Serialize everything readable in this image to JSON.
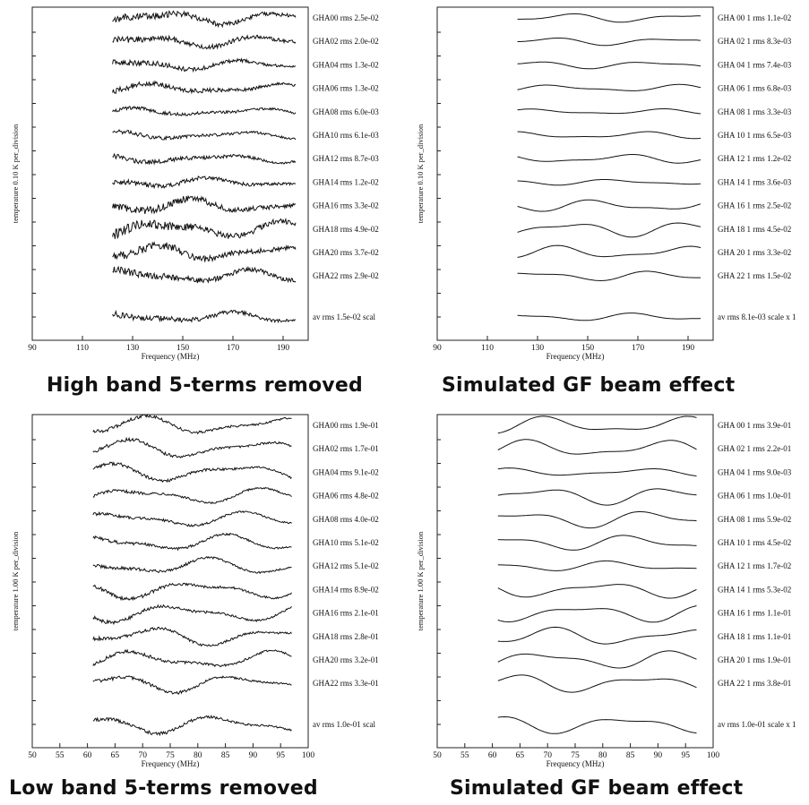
{
  "panels": [
    {
      "title": "High band 5-terms removed",
      "chart_data": {
        "type": "line",
        "xlabel": "Frequency (MHz)",
        "ylabel": "temperature  0.10 K  per_division",
        "xlim": [
          90,
          200
        ],
        "xticks": [
          90,
          110,
          130,
          150,
          170,
          190
        ],
        "x_range": [
          122,
          195
        ],
        "noise": 0.35,
        "series": [
          {
            "name": "GHA00 rms 2.5e-02",
            "label": "GHA00 rms 2.5e-02",
            "rms": 0.025
          },
          {
            "name": "GHA02 rms 2.0e-02",
            "label": "GHA02 rms 2.0e-02",
            "rms": 0.02
          },
          {
            "name": "GHA04 rms 1.3e-02",
            "label": "GHA04 rms 1.3e-02",
            "rms": 0.013
          },
          {
            "name": "GHA06 rms 1.3e-02",
            "label": "GHA06 rms 1.3e-02",
            "rms": 0.013
          },
          {
            "name": "GHA08 rms 6.0e-03",
            "label": "GHA08 rms 6.0e-03",
            "rms": 0.006
          },
          {
            "name": "GHA10 rms 6.1e-03",
            "label": "GHA10 rms 6.1e-03",
            "rms": 0.0061
          },
          {
            "name": "GHA12 rms 8.7e-03",
            "label": "GHA12 rms 8.7e-03",
            "rms": 0.0087
          },
          {
            "name": "GHA14 rms 1.2e-02",
            "label": "GHA14 rms 1.2e-02",
            "rms": 0.012
          },
          {
            "name": "GHA16 rms 3.3e-02",
            "label": "GHA16 rms 3.3e-02",
            "rms": 0.033
          },
          {
            "name": "GHA18 rms 4.9e-02",
            "label": "GHA18 rms 4.9e-02",
            "rms": 0.049
          },
          {
            "name": "GHA20 rms 3.7e-02",
            "label": "GHA20 rms 3.7e-02",
            "rms": 0.037
          },
          {
            "name": "GHA22 rms 2.9e-02",
            "label": "GHA22 rms 2.9e-02",
            "rms": 0.029
          },
          {
            "name": "av  rms 1.5e-02 scal",
            "label": "av  rms 1.5e-02 scal",
            "rms": 0.015,
            "average": true
          }
        ]
      }
    },
    {
      "title": "Simulated GF beam effect",
      "chart_data": {
        "type": "line",
        "xlabel": "Frequency (MHz)",
        "ylabel": "temperature  0.10 K  per_division",
        "xlim": [
          90,
          200
        ],
        "xticks": [
          90,
          110,
          130,
          150,
          170,
          190
        ],
        "x_range": [
          122,
          195
        ],
        "noise": 0,
        "series": [
          {
            "name": "GHA 00 1 rms 1.1e-02",
            "label": "GHA 00 1 rms 1.1e-02",
            "rms": 0.011
          },
          {
            "name": "GHA 02 1 rms 8.3e-03",
            "label": "GHA 02 1 rms 8.3e-03",
            "rms": 0.0083
          },
          {
            "name": "GHA 04 1 rms 7.4e-03",
            "label": "GHA 04 1 rms 7.4e-03",
            "rms": 0.0074
          },
          {
            "name": "GHA 06 1 rms 6.8e-03",
            "label": "GHA 06 1 rms 6.8e-03",
            "rms": 0.0068
          },
          {
            "name": "GHA 08 1 rms 3.3e-03",
            "label": "GHA 08 1 rms 3.3e-03",
            "rms": 0.0033
          },
          {
            "name": "GHA 10 1 rms 6.5e-03",
            "label": "GHA 10 1 rms 6.5e-03",
            "rms": 0.0065
          },
          {
            "name": "GHA 12 1 rms 1.2e-02",
            "label": "GHA 12 1 rms 1.2e-02",
            "rms": 0.012
          },
          {
            "name": "GHA 14 1 rms 3.6e-03",
            "label": "GHA 14 1 rms 3.6e-03",
            "rms": 0.0036
          },
          {
            "name": "GHA 16 1 rms 2.5e-02",
            "label": "GHA 16 1 rms 2.5e-02",
            "rms": 0.025
          },
          {
            "name": "GHA 18 1 rms 4.5e-02",
            "label": "GHA 18 1 rms 4.5e-02",
            "rms": 0.045
          },
          {
            "name": "GHA 20 1 rms 3.3e-02",
            "label": "GHA 20 1 rms 3.3e-02",
            "rms": 0.033
          },
          {
            "name": "GHA 22 1 rms 1.5e-02",
            "label": "GHA 22 1 rms 1.5e-02",
            "rms": 0.015
          },
          {
            "name": "av  rms 8.1e-03 scale x 1",
            "label": "av  rms 8.1e-03 scale x 1",
            "rms": 0.0081,
            "average": true
          }
        ]
      }
    },
    {
      "title": "Low band 5-terms removed",
      "chart_data": {
        "type": "line",
        "xlabel": "Frequency (MHz)",
        "ylabel": "temperature  1.00 K  per_division",
        "xlim": [
          50,
          100
        ],
        "xticks": [
          50,
          55,
          60,
          65,
          70,
          75,
          80,
          85,
          90,
          95,
          100
        ],
        "x_range": [
          61,
          97
        ],
        "noise": 0.12,
        "series": [
          {
            "name": "GHA00 rms 1.9e-01",
            "label": "GHA00 rms 1.9e-01",
            "rms": 0.19
          },
          {
            "name": "GHA02 rms 1.7e-01",
            "label": "GHA02 rms 1.7e-01",
            "rms": 0.17
          },
          {
            "name": "GHA04 rms 9.1e-02",
            "label": "GHA04 rms 9.1e-02",
            "rms": 0.091
          },
          {
            "name": "GHA06 rms 4.8e-02",
            "label": "GHA06 rms 4.8e-02",
            "rms": 0.048
          },
          {
            "name": "GHA08 rms 4.0e-02",
            "label": "GHA08 rms 4.0e-02",
            "rms": 0.04
          },
          {
            "name": "GHA10 rms 5.1e-02",
            "label": "GHA10 rms 5.1e-02",
            "rms": 0.051
          },
          {
            "name": "GHA12 rms 5.1e-02",
            "label": "GHA12 rms 5.1e-02",
            "rms": 0.051
          },
          {
            "name": "GHA14 rms 8.9e-02",
            "label": "GHA14 rms 8.9e-02",
            "rms": 0.089
          },
          {
            "name": "GHA16 rms 2.1e-01",
            "label": "GHA16 rms 2.1e-01",
            "rms": 0.21
          },
          {
            "name": "GHA18 rms 2.8e-01",
            "label": "GHA18 rms 2.8e-01",
            "rms": 0.28
          },
          {
            "name": "GHA20 rms 3.2e-01",
            "label": "GHA20 rms 3.2e-01",
            "rms": 0.32
          },
          {
            "name": "GHA22 rms 3.3e-01",
            "label": "GHA22 rms 3.3e-01",
            "rms": 0.33
          },
          {
            "name": "av  rms 1.0e-01 scal",
            "label": "av  rms 1.0e-01 scal",
            "rms": 0.1,
            "average": true
          }
        ]
      }
    },
    {
      "title": "Simulated GF beam effect",
      "chart_data": {
        "type": "line",
        "xlabel": "Frequency (MHz)",
        "ylabel": "temperature  1.00 K  per_division",
        "xlim": [
          50,
          100
        ],
        "xticks": [
          50,
          55,
          60,
          65,
          70,
          75,
          80,
          85,
          90,
          95,
          100
        ],
        "x_range": [
          61,
          97
        ],
        "noise": 0,
        "series": [
          {
            "name": "GHA 00 1 rms 3.9e-01",
            "label": "GHA 00 1 rms 3.9e-01",
            "rms": 0.39
          },
          {
            "name": "GHA 02 1 rms 2.2e-01",
            "label": "GHA 02 1 rms 2.2e-01",
            "rms": 0.22
          },
          {
            "name": "GHA 04 1 rms 9.0e-03",
            "label": "GHA 04 1 rms 9.0e-03",
            "rms": 0.009
          },
          {
            "name": "GHA 06 1 rms 1.0e-01",
            "label": "GHA 06 1 rms 1.0e-01",
            "rms": 0.1
          },
          {
            "name": "GHA 08 1 rms 5.9e-02",
            "label": "GHA 08 1 rms 5.9e-02",
            "rms": 0.059
          },
          {
            "name": "GHA 10 1 rms 4.5e-02",
            "label": "GHA 10 1 rms 4.5e-02",
            "rms": 0.045
          },
          {
            "name": "GHA 12 1 rms 1.7e-02",
            "label": "GHA 12 1 rms 1.7e-02",
            "rms": 0.017
          },
          {
            "name": "GHA 14 1 rms 5.3e-02",
            "label": "GHA 14 1 rms 5.3e-02",
            "rms": 0.053
          },
          {
            "name": "GHA 16 1 rms 1.1e-01",
            "label": "GHA 16 1 rms 1.1e-01",
            "rms": 0.11
          },
          {
            "name": "GHA 18 1 rms 1.1e-01",
            "label": "GHA 18 1 rms 1.1e-01",
            "rms": 0.11
          },
          {
            "name": "GHA 20 1 rms 1.9e-01",
            "label": "GHA 20 1 rms 1.9e-01",
            "rms": 0.19
          },
          {
            "name": "GHA 22 1 rms 3.8e-01",
            "label": "GHA 22 1 rms 3.8e-01",
            "rms": 0.38
          },
          {
            "name": "av  rms 1.0e-01 scale x 1",
            "label": "av  rms 1.0e-01 scale x 1",
            "rms": 0.1,
            "average": true
          }
        ]
      }
    }
  ]
}
